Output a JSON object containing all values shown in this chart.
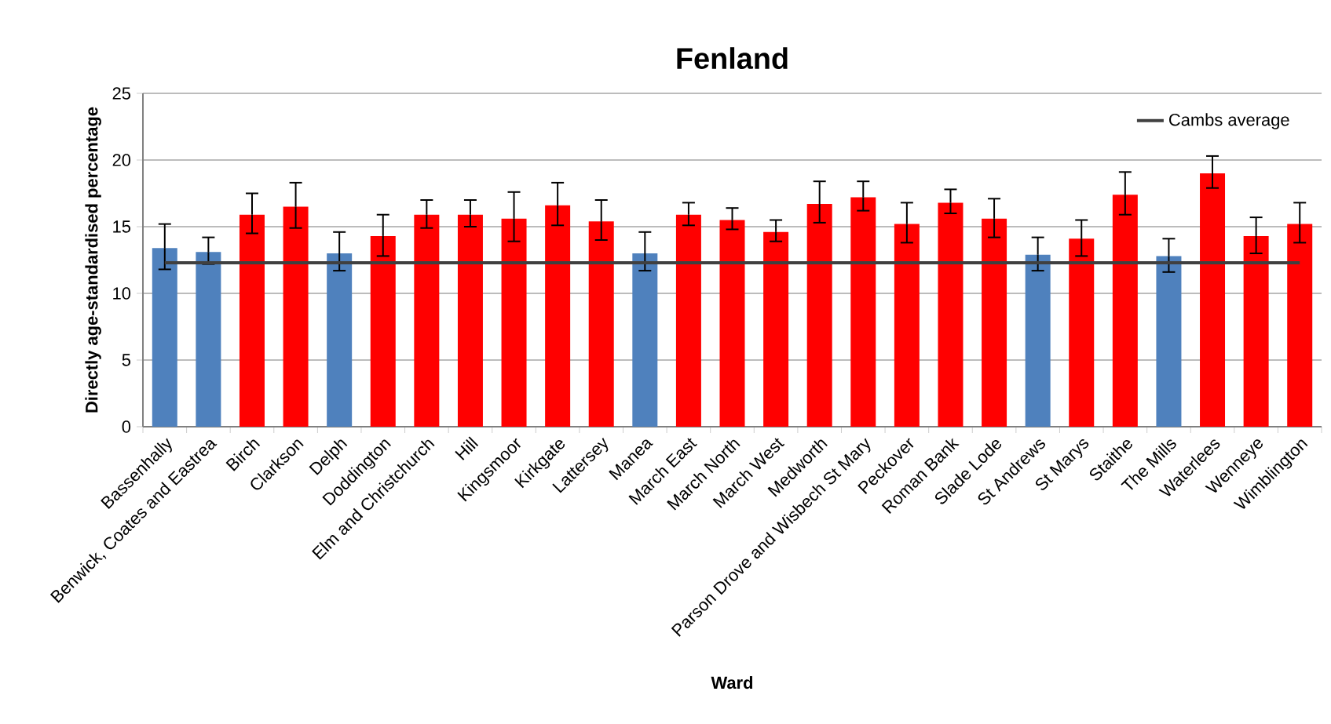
{
  "chart_data": {
    "type": "bar",
    "title": "Fenland",
    "xlabel": "Ward",
    "ylabel": "Directly age-standardised percentage",
    "categories": [
      "Bassenhally",
      "Benwick, Coates and Eastrea",
      "Birch",
      "Clarkson",
      "Delph",
      "Doddington",
      "Elm and Christchurch",
      "Hill",
      "Kingsmoor",
      "Kirkgate",
      "Lattersey",
      "Manea",
      "March East",
      "March North",
      "March West",
      "Medworth",
      "Parson Drove and Wisbech St Mary",
      "Peckover",
      "Roman Bank",
      "Slade Lode",
      "St Andrews",
      "St Marys",
      "Staithe",
      "The Mills",
      "Waterlees",
      "Wenneye",
      "Wimblington"
    ],
    "values": [
      13.4,
      13.1,
      15.9,
      16.5,
      13.0,
      14.3,
      15.9,
      15.9,
      15.6,
      16.6,
      15.4,
      13.0,
      15.9,
      15.5,
      14.6,
      16.7,
      17.2,
      15.2,
      16.8,
      15.6,
      12.9,
      14.1,
      17.4,
      12.8,
      19.0,
      14.3,
      15.2
    ],
    "errors": [
      [
        11.8,
        15.2
      ],
      [
        12.2,
        14.2
      ],
      [
        14.5,
        17.5
      ],
      [
        14.9,
        18.3
      ],
      [
        11.7,
        14.6
      ],
      [
        12.8,
        15.9
      ],
      [
        14.9,
        17.0
      ],
      [
        15.0,
        17.0
      ],
      [
        13.9,
        17.6
      ],
      [
        15.1,
        18.3
      ],
      [
        14.0,
        17.0
      ],
      [
        11.7,
        14.6
      ],
      [
        15.1,
        16.8
      ],
      [
        14.8,
        16.4
      ],
      [
        13.9,
        15.5
      ],
      [
        15.3,
        18.4
      ],
      [
        16.2,
        18.4
      ],
      [
        13.8,
        16.8
      ],
      [
        16.0,
        17.8
      ],
      [
        14.2,
        17.1
      ],
      [
        11.7,
        14.2
      ],
      [
        12.8,
        15.5
      ],
      [
        15.9,
        19.1
      ],
      [
        11.6,
        14.1
      ],
      [
        17.9,
        20.3
      ],
      [
        13.0,
        15.7
      ],
      [
        13.8,
        16.8
      ]
    ],
    "colors": [
      "#4f81bd",
      "#4f81bd",
      "#ff0000",
      "#ff0000",
      "#4f81bd",
      "#ff0000",
      "#ff0000",
      "#ff0000",
      "#ff0000",
      "#ff0000",
      "#ff0000",
      "#4f81bd",
      "#ff0000",
      "#ff0000",
      "#ff0000",
      "#ff0000",
      "#ff0000",
      "#ff0000",
      "#ff0000",
      "#ff0000",
      "#4f81bd",
      "#ff0000",
      "#ff0000",
      "#4f81bd",
      "#ff0000",
      "#ff0000",
      "#ff0000"
    ],
    "ref_lines": [
      {
        "axis": "y",
        "value": 12.3,
        "label": "Cambs average",
        "color": "#404040"
      }
    ],
    "ylim": [
      0,
      25
    ],
    "yticks": [
      0,
      5,
      10,
      15,
      20,
      25
    ],
    "grid": "y",
    "legend": "top right"
  }
}
